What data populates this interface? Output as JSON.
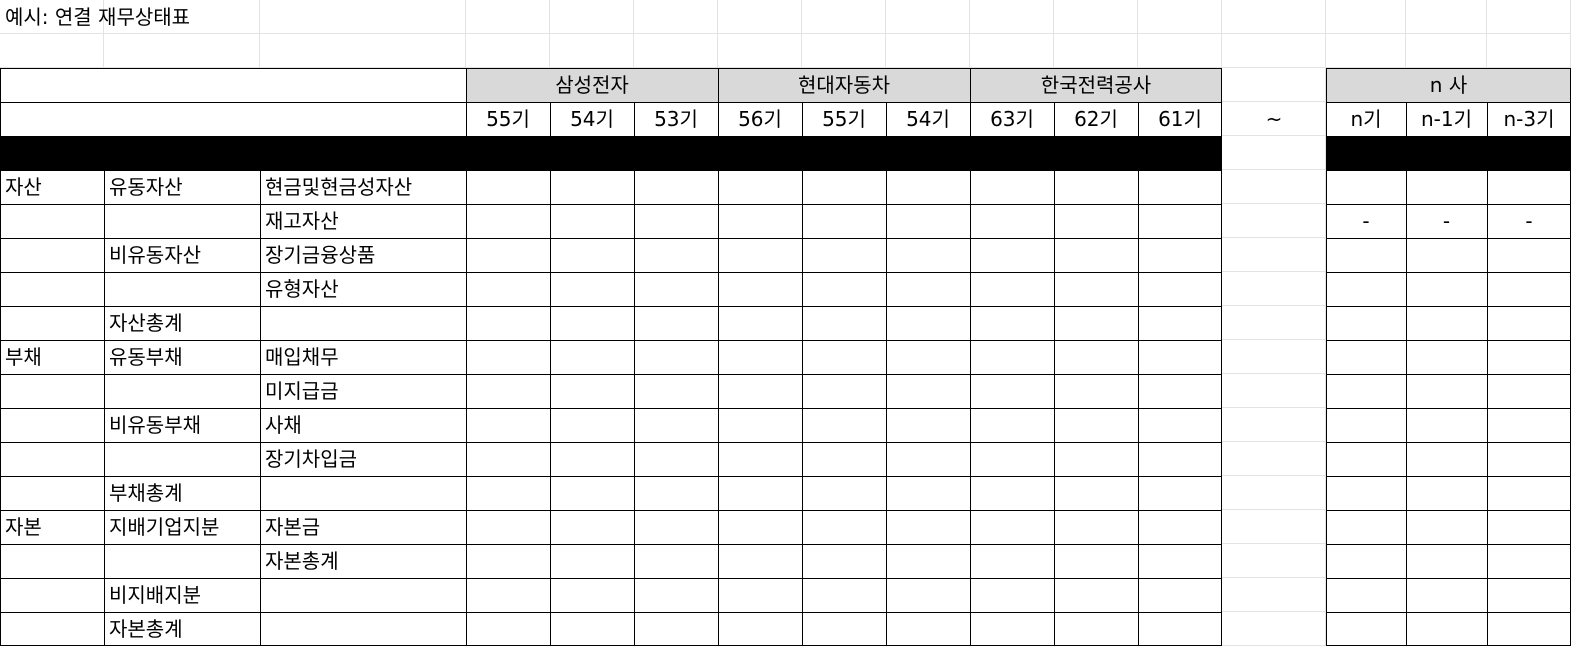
{
  "title": "예시: 연결 재무상태표",
  "companies": [
    {
      "name": "삼성전자",
      "periods": [
        "55기",
        "54기",
        "53기"
      ]
    },
    {
      "name": "현대자동차",
      "periods": [
        "56기",
        "55기",
        "54기"
      ]
    },
    {
      "name": "한국전력공사",
      "periods": [
        "63기",
        "62기",
        "61기"
      ]
    }
  ],
  "separator": "~",
  "last_company": {
    "name": "n 사",
    "periods": [
      "n기",
      "n-1기",
      "n-3기"
    ]
  },
  "rows": [
    {
      "category": "자산",
      "sub": "유동자산",
      "item": "현금및현금성자산",
      "last_values": [
        "",
        "",
        ""
      ]
    },
    {
      "category": "",
      "sub": "",
      "item": "재고자산",
      "last_values": [
        "-",
        "-",
        "-"
      ]
    },
    {
      "category": "",
      "sub": "비유동자산",
      "item": "장기금융상품",
      "last_values": [
        "",
        "",
        ""
      ]
    },
    {
      "category": "",
      "sub": "",
      "item": "유형자산",
      "last_values": [
        "",
        "",
        ""
      ]
    },
    {
      "category": "",
      "sub": "자산총계",
      "item": "",
      "last_values": [
        "",
        "",
        ""
      ]
    },
    {
      "category": "부채",
      "sub": "유동부채",
      "item": "매입채무",
      "last_values": [
        "",
        "",
        ""
      ]
    },
    {
      "category": "",
      "sub": "",
      "item": "미지급금",
      "last_values": [
        "",
        "",
        ""
      ]
    },
    {
      "category": "",
      "sub": "비유동부채",
      "item": "사채",
      "last_values": [
        "",
        "",
        ""
      ]
    },
    {
      "category": "",
      "sub": "",
      "item": "장기차입금",
      "last_values": [
        "",
        "",
        ""
      ]
    },
    {
      "category": "",
      "sub": "부채총계",
      "item": "",
      "last_values": [
        "",
        "",
        ""
      ]
    },
    {
      "category": "자본",
      "sub": "지배기업지분",
      "item": "자본금",
      "last_values": [
        "",
        "",
        ""
      ]
    },
    {
      "category": "",
      "sub": "",
      "item": "자본총계",
      "last_values": [
        "",
        "",
        ""
      ]
    },
    {
      "category": "",
      "sub": "비지배지분",
      "item": "",
      "last_values": [
        "",
        "",
        ""
      ]
    },
    {
      "category": "",
      "sub": "자본총계",
      "item": "",
      "last_values": [
        "",
        "",
        ""
      ]
    }
  ],
  "colors": {
    "header_fill": "#d9d9d9",
    "band_fill": "#000000",
    "gridline": "#e3e3e3",
    "border": "#000000"
  }
}
